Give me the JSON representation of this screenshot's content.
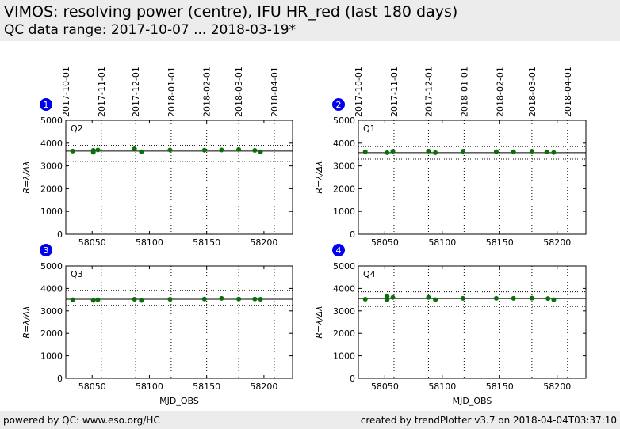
{
  "header": {
    "title": "VIMOS: resolving power (centre), IFU HR_red (last 180 days)",
    "subtitle": "QC data range: 2017-10-07 ... 2018-03-19*"
  },
  "footer": {
    "left": "powered by QC: www.eso.org/HC",
    "right": "created by trendPlotter v3.7 on 2018-04-04T03:37:10"
  },
  "colors": {
    "marker": "#0b6e0b",
    "badge": "#0000ee",
    "header_bg": "#ececec"
  },
  "chart_data": [
    {
      "type": "scatter",
      "panel_number": "1",
      "panel_label": "Q2",
      "xlabel": "",
      "ylabel": "R=λ/Δλ",
      "xlim": [
        58027,
        58225
      ],
      "ylim": [
        0,
        5000
      ],
      "xticks": [
        58050,
        58100,
        58150,
        58200
      ],
      "yticks": [
        0,
        1000,
        2000,
        3000,
        4000,
        5000
      ],
      "top_date_ticks": [
        {
          "label": "2017-10-01",
          "mjd": 58027
        },
        {
          "label": "2017-11-01",
          "mjd": 58058
        },
        {
          "label": "2017-12-01",
          "mjd": 58088
        },
        {
          "label": "2018-01-01",
          "mjd": 58119
        },
        {
          "label": "2018-02-01",
          "mjd": 58150
        },
        {
          "label": "2018-03-01",
          "mjd": 58178
        },
        {
          "label": "2018-04-01",
          "mjd": 58209
        }
      ],
      "reference_line": 3650,
      "threshold_upper": 3900,
      "threshold_lower": 3200,
      "x": [
        58033,
        58051,
        58051,
        58055,
        58087,
        58093,
        58118,
        58148,
        58163,
        58178,
        58192,
        58197
      ],
      "y": [
        3650,
        3600,
        3680,
        3700,
        3750,
        3620,
        3700,
        3690,
        3700,
        3720,
        3680,
        3620
      ]
    },
    {
      "type": "scatter",
      "panel_number": "2",
      "panel_label": "Q1",
      "xlabel": "",
      "ylabel": "R=λ/Δλ",
      "xlim": [
        58027,
        58225
      ],
      "ylim": [
        0,
        5000
      ],
      "xticks": [
        58050,
        58100,
        58150,
        58200
      ],
      "yticks": [
        0,
        1000,
        2000,
        3000,
        4000,
        5000
      ],
      "top_date_ticks": [
        {
          "label": "2017-10-01",
          "mjd": 58027
        },
        {
          "label": "2017-11-01",
          "mjd": 58058
        },
        {
          "label": "2017-12-01",
          "mjd": 58088
        },
        {
          "label": "2018-01-01",
          "mjd": 58119
        },
        {
          "label": "2018-02-01",
          "mjd": 58150
        },
        {
          "label": "2018-03-01",
          "mjd": 58178
        },
        {
          "label": "2018-04-01",
          "mjd": 58209
        }
      ],
      "reference_line": 3580,
      "threshold_upper": 3850,
      "threshold_lower": 3300,
      "x": [
        58033,
        58052,
        58057,
        58088,
        58094,
        58118,
        58147,
        58162,
        58178,
        58191,
        58197
      ],
      "y": [
        3620,
        3580,
        3640,
        3650,
        3580,
        3640,
        3630,
        3620,
        3640,
        3620,
        3590
      ]
    },
    {
      "type": "scatter",
      "panel_number": "3",
      "panel_label": "Q3",
      "xlabel": "MJD_OBS",
      "ylabel": "R=λ/Δλ",
      "xlim": [
        58027,
        58225
      ],
      "ylim": [
        0,
        5000
      ],
      "xticks": [
        58050,
        58100,
        58150,
        58200
      ],
      "yticks": [
        0,
        1000,
        2000,
        3000,
        4000,
        5000
      ],
      "top_date_ticks": [],
      "reference_line": 3520,
      "threshold_upper": 3900,
      "threshold_lower": 3250,
      "x": [
        58033,
        58051,
        58055,
        58087,
        58093,
        58118,
        58148,
        58163,
        58178,
        58192,
        58197
      ],
      "y": [
        3500,
        3470,
        3500,
        3520,
        3470,
        3520,
        3530,
        3560,
        3530,
        3530,
        3520
      ]
    },
    {
      "type": "scatter",
      "panel_number": "4",
      "panel_label": "Q4",
      "xlabel": "MJD_OBS",
      "ylabel": "R=λ/Δλ",
      "xlim": [
        58027,
        58225
      ],
      "ylim": [
        0,
        5000
      ],
      "xticks": [
        58050,
        58100,
        58150,
        58200
      ],
      "yticks": [
        0,
        1000,
        2000,
        3000,
        4000,
        5000
      ],
      "top_date_ticks": [],
      "reference_line": 3550,
      "threshold_upper": 3850,
      "threshold_lower": 3200,
      "x": [
        58033,
        58052,
        58052,
        58057,
        58088,
        58094,
        58118,
        58147,
        58162,
        58178,
        58192,
        58197
      ],
      "y": [
        3520,
        3650,
        3500,
        3600,
        3600,
        3500,
        3560,
        3560,
        3560,
        3570,
        3550,
        3500
      ]
    }
  ]
}
